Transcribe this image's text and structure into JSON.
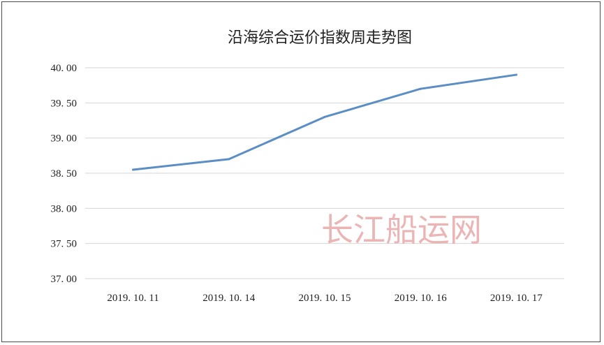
{
  "chart_data": {
    "type": "line",
    "title": "沿海综合运价指数周走势图",
    "xlabel": "",
    "ylabel": "",
    "categories": [
      "2019. 10. 11",
      "2019. 10. 14",
      "2019. 10. 15",
      "2019. 10. 16",
      "2019. 10. 17"
    ],
    "series": [
      {
        "values": [
          38.55,
          38.7,
          39.3,
          39.7,
          39.9
        ]
      }
    ],
    "ylim": [
      37.0,
      40.0
    ],
    "yticks": [
      "37. 00",
      "37. 50",
      "38. 00",
      "38. 50",
      "39. 00",
      "39. 50",
      "40. 00"
    ],
    "grid": true,
    "legend": "none",
    "colors": {
      "series": "#5b8ec5",
      "grid": "#d6d6d6",
      "watermark": "#e8a9a9"
    }
  },
  "watermark": "长江船运网"
}
